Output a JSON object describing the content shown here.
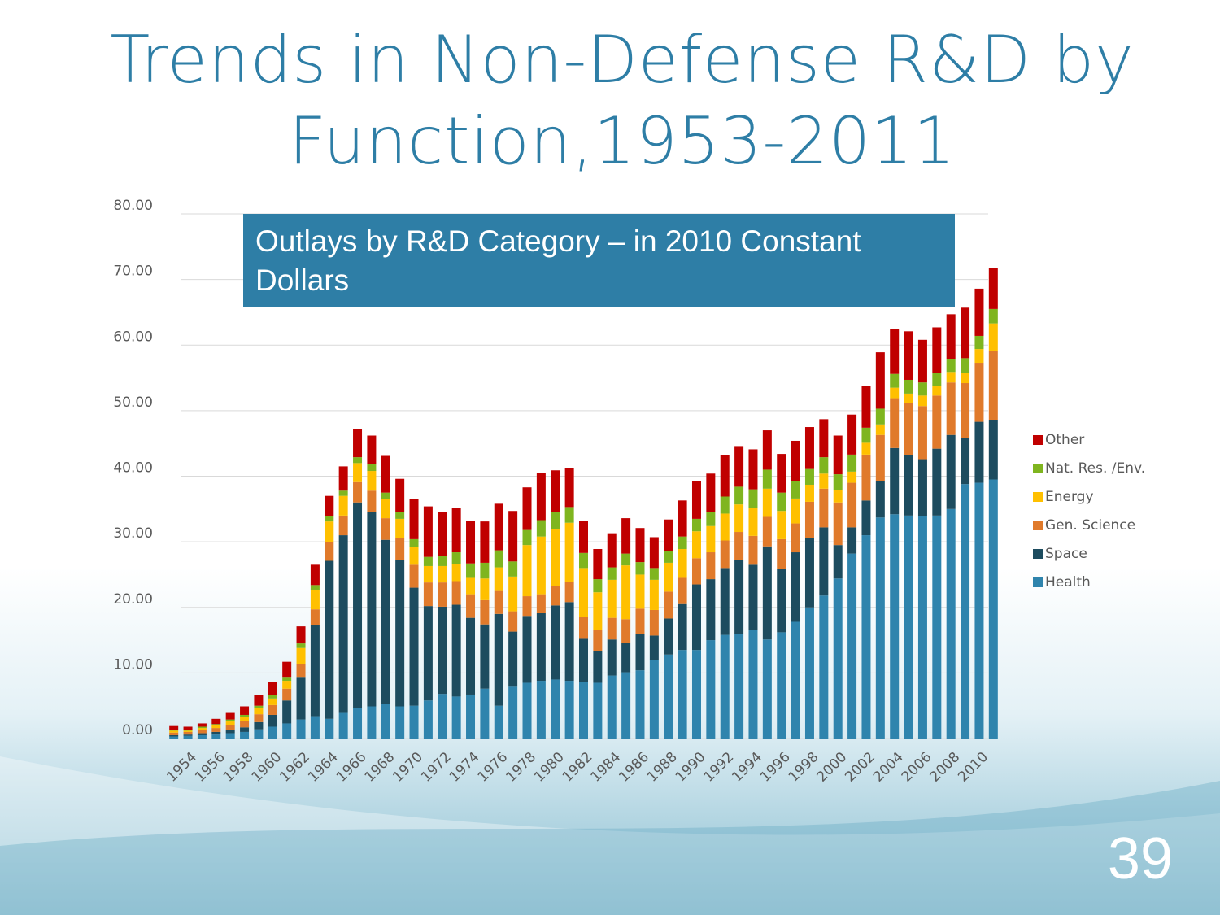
{
  "chart_data": {
    "type": "stacked_bar",
    "title": "Trends in Non-Defense R&D by Function,1953-2011",
    "annotation": "Outlays by R&D Category – in 2010 Constant Dollars",
    "page_number": "39",
    "categories": [
      null,
      "1954",
      null,
      "1956",
      null,
      "1958",
      null,
      "1960",
      null,
      "1962",
      null,
      "1964",
      null,
      "1966",
      null,
      "1968",
      null,
      "1970",
      null,
      "1972",
      null,
      "1974",
      null,
      "1976",
      null,
      "1978",
      null,
      "1980",
      null,
      "1982",
      null,
      "1984",
      null,
      "1986",
      null,
      "1988",
      null,
      "1990",
      null,
      "1992",
      null,
      "1994",
      null,
      "1996",
      null,
      "1998",
      null,
      "2000",
      null,
      "2002",
      null,
      "2004",
      null,
      "2006",
      null,
      "2008",
      null,
      "2010",
      null
    ],
    "series": [
      {
        "name": "Health",
        "color": "#2f84ad",
        "values": [
          0.3,
          0.4,
          0.5,
          0.6,
          0.8,
          1.0,
          1.4,
          1.8,
          2.3,
          2.9,
          3.4,
          3.0,
          3.9,
          4.7,
          4.9,
          5.3,
          4.9,
          5.0,
          5.8,
          6.8,
          6.4,
          6.7,
          7.6,
          5.0,
          7.9,
          8.5,
          8.8,
          9.0,
          8.8,
          8.6,
          8.5,
          9.6,
          10.1,
          10.4,
          12.0,
          12.8,
          13.5,
          13.5,
          15.0,
          15.8,
          15.9,
          16.5,
          15.1,
          16.2,
          17.8,
          20.0,
          21.8,
          24.4,
          28.2,
          31.0,
          33.7,
          34.2,
          34.0,
          33.9,
          34.0,
          35.0,
          38.8,
          39.0,
          39.5
        ]
      },
      {
        "name": "Space",
        "color": "#1d4c5f",
        "values": [
          0.2,
          0.2,
          0.3,
          0.4,
          0.5,
          0.7,
          1.1,
          1.8,
          3.5,
          6.5,
          13.9,
          24.1,
          27.1,
          31.3,
          29.7,
          25.0,
          22.3,
          18.0,
          14.4,
          13.3,
          14.0,
          11.7,
          9.8,
          14.0,
          8.4,
          10.2,
          10.3,
          11.3,
          12.0,
          6.6,
          4.8,
          5.5,
          4.5,
          5.6,
          3.7,
          5.5,
          7.0,
          10.0,
          9.3,
          10.2,
          11.3,
          10.0,
          14.2,
          9.6,
          10.6,
          10.6,
          10.4,
          5.1,
          4.0,
          5.3,
          5.5,
          10.1,
          9.2,
          8.7,
          10.2,
          11.3,
          7.0,
          9.3,
          9.0
        ]
      },
      {
        "name": "Gen. Science",
        "color": "#e07a2b",
        "values": [
          0.4,
          0.4,
          0.5,
          0.6,
          0.8,
          1.0,
          1.2,
          1.5,
          1.8,
          2.0,
          2.4,
          2.8,
          3.0,
          3.1,
          3.2,
          3.3,
          3.4,
          3.5,
          3.6,
          3.7,
          3.6,
          3.6,
          3.7,
          3.5,
          3.1,
          3.0,
          2.9,
          3.0,
          3.1,
          3.3,
          3.2,
          3.3,
          3.6,
          3.8,
          3.9,
          4.1,
          4.0,
          4.0,
          4.1,
          4.2,
          4.3,
          4.4,
          4.5,
          4.6,
          4.4,
          5.5,
          5.9,
          6.5,
          6.8,
          7.0,
          7.1,
          7.6,
          8.0,
          8.1,
          8.1,
          8.0,
          8.4,
          9.0,
          10.6
        ]
      },
      {
        "name": "Energy",
        "color": "#ffc000",
        "values": [
          0.3,
          0.2,
          0.3,
          0.4,
          0.5,
          0.6,
          0.9,
          1.0,
          1.2,
          2.4,
          3.0,
          3.2,
          3.0,
          2.9,
          3.0,
          2.9,
          2.9,
          2.7,
          2.5,
          2.5,
          2.6,
          2.5,
          3.3,
          3.6,
          5.3,
          7.8,
          8.8,
          8.6,
          9.0,
          7.5,
          5.8,
          5.8,
          8.2,
          5.2,
          4.6,
          4.4,
          4.4,
          4.1,
          4.0,
          4.1,
          4.2,
          4.3,
          4.3,
          4.3,
          3.8,
          2.6,
          2.3,
          1.9,
          1.7,
          1.8,
          1.6,
          1.6,
          1.4,
          1.6,
          1.5,
          1.6,
          1.6,
          2.1,
          4.2
        ]
      },
      {
        "name": "Nat. Res. /Env.",
        "color": "#7fb51f",
        "values": [
          0.1,
          0.1,
          0.2,
          0.2,
          0.3,
          0.3,
          0.4,
          0.5,
          0.6,
          0.7,
          0.7,
          0.8,
          0.8,
          0.9,
          1.0,
          1.0,
          1.1,
          1.2,
          1.4,
          1.6,
          1.8,
          2.2,
          2.4,
          2.6,
          2.3,
          2.3,
          2.5,
          2.6,
          2.4,
          2.3,
          2.0,
          1.9,
          1.8,
          1.9,
          1.8,
          1.8,
          1.9,
          1.9,
          2.2,
          2.6,
          2.7,
          2.8,
          2.9,
          2.8,
          2.6,
          2.4,
          2.5,
          2.4,
          2.6,
          2.3,
          2.4,
          2.1,
          2.1,
          2.0,
          2.0,
          2.0,
          2.2,
          2.0,
          2.2
        ]
      },
      {
        "name": "Other",
        "color": "#c00000",
        "values": [
          0.6,
          0.5,
          0.5,
          0.8,
          1.0,
          1.3,
          1.6,
          2.0,
          2.3,
          2.6,
          3.1,
          3.1,
          3.7,
          4.3,
          4.4,
          5.6,
          5.0,
          6.1,
          7.7,
          6.7,
          6.7,
          6.5,
          6.3,
          7.1,
          7.7,
          6.5,
          7.2,
          6.4,
          5.9,
          4.9,
          4.6,
          5.2,
          5.4,
          5.2,
          4.7,
          4.8,
          5.5,
          5.7,
          5.8,
          6.3,
          6.2,
          6.1,
          6.0,
          5.9,
          6.2,
          6.4,
          5.8,
          5.9,
          6.1,
          6.4,
          8.6,
          6.9,
          7.4,
          6.5,
          6.9,
          6.8,
          7.7,
          7.2,
          6.3
        ]
      }
    ],
    "ylim": [
      0,
      80
    ],
    "yticks": [
      {
        "value": 0,
        "label": "0.00"
      },
      {
        "value": 10,
        "label": "10.00"
      },
      {
        "value": 20,
        "label": "20.00"
      },
      {
        "value": 30,
        "label": "30.00"
      },
      {
        "value": 40,
        "label": "40.00"
      },
      {
        "value": 50,
        "label": "50.00"
      },
      {
        "value": 60,
        "label": "60.00"
      },
      {
        "value": 70,
        "label": "70.00"
      },
      {
        "value": 80,
        "label": "80.00"
      }
    ],
    "grid": true,
    "legend": "right"
  }
}
